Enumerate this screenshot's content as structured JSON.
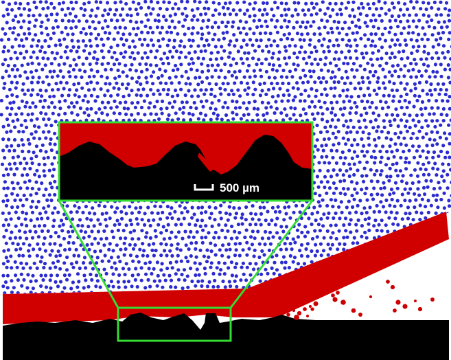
{
  "figure": {
    "scale_bar_label": "500 µm",
    "colors": {
      "particles": "#2b2bd0",
      "fluid": "#d00000",
      "solid": "#000000",
      "zoom_frame": "#33dd33",
      "background": "#ffffff",
      "debris": "#cc0000"
    }
  }
}
